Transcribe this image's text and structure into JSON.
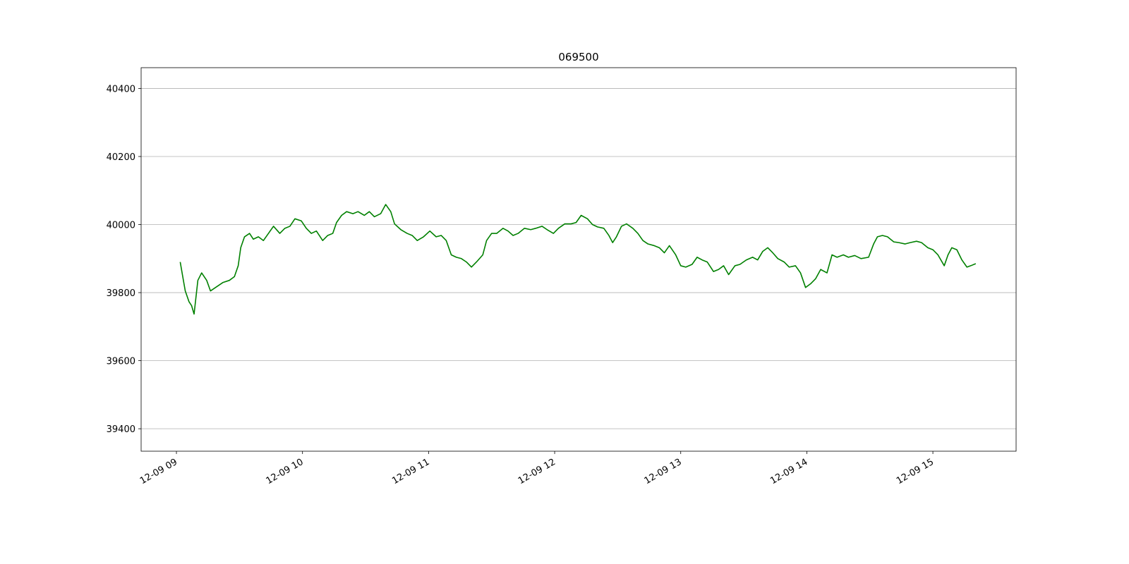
{
  "chart_data": {
    "type": "line",
    "title": "069500",
    "color": "#008000",
    "grid": "y",
    "x": [
      9.03,
      9.06,
      9.07,
      9.1,
      9.12,
      9.14,
      9.17,
      9.2,
      9.24,
      9.27,
      9.31,
      9.37,
      9.42,
      9.46,
      9.49,
      9.51,
      9.54,
      9.58,
      9.61,
      9.65,
      9.69,
      9.73,
      9.77,
      9.82,
      9.86,
      9.9,
      9.94,
      9.99,
      10.03,
      10.07,
      10.11,
      10.16,
      10.2,
      10.24,
      10.27,
      10.31,
      10.35,
      10.4,
      10.44,
      10.49,
      10.53,
      10.57,
      10.62,
      10.66,
      10.7,
      10.73,
      10.78,
      10.83,
      10.87,
      10.91,
      10.96,
      11.01,
      11.06,
      11.1,
      11.14,
      11.18,
      11.22,
      11.26,
      11.3,
      11.34,
      11.38,
      11.43,
      11.46,
      11.5,
      11.54,
      11.59,
      11.63,
      11.67,
      11.71,
      11.76,
      11.81,
      11.85,
      11.9,
      11.94,
      11.99,
      12.03,
      12.08,
      12.13,
      12.17,
      12.21,
      12.26,
      12.3,
      12.34,
      12.39,
      12.43,
      12.46,
      12.49,
      12.53,
      12.57,
      12.62,
      12.66,
      12.7,
      12.74,
      12.79,
      12.83,
      12.87,
      12.91,
      12.96,
      13.0,
      13.04,
      13.09,
      13.13,
      13.17,
      13.21,
      13.26,
      13.3,
      13.34,
      13.38,
      13.43,
      13.47,
      13.52,
      13.57,
      13.61,
      13.65,
      13.69,
      13.73,
      13.77,
      13.82,
      13.86,
      13.91,
      13.95,
      13.99,
      14.03,
      14.07,
      14.11,
      14.16,
      14.2,
      14.24,
      14.29,
      14.33,
      14.38,
      14.43,
      14.49,
      14.53,
      14.56,
      14.6,
      14.64,
      14.69,
      14.73,
      14.78,
      14.82,
      14.87,
      14.91,
      14.96,
      15.0,
      15.04,
      15.09,
      15.12,
      15.15,
      15.19,
      15.23,
      15.27,
      15.3,
      15.34
    ],
    "values": [
      39890,
      39826,
      39805,
      39773,
      39762,
      39737,
      39836,
      39858,
      39836,
      39805,
      39815,
      39830,
      39836,
      39847,
      39879,
      39932,
      39964,
      39974,
      39957,
      39964,
      39953,
      39974,
      39995,
      39974,
      39989,
      39995,
      40017,
      40011,
      39989,
      39974,
      39981,
      39953,
      39968,
      39974,
      40006,
      40027,
      40038,
      40032,
      40038,
      40027,
      40038,
      40023,
      40032,
      40059,
      40038,
      40002,
      39985,
      39974,
      39968,
      39953,
      39964,
      39981,
      39964,
      39968,
      39953,
      39911,
      39904,
      39900,
      39890,
      39875,
      39890,
      39911,
      39953,
      39974,
      39974,
      39989,
      39981,
      39968,
      39974,
      39989,
      39985,
      39989,
      39995,
      39985,
      39974,
      39989,
      40002,
      40002,
      40006,
      40027,
      40017,
      40000,
      39993,
      39989,
      39968,
      39947,
      39964,
      39995,
      40002,
      39989,
      39974,
      39953,
      39943,
      39938,
      39932,
      39917,
      39938,
      39911,
      39879,
      39875,
      39883,
      39904,
      39896,
      39890,
      39862,
      39868,
      39879,
      39853,
      39879,
      39883,
      39896,
      39904,
      39896,
      39921,
      39932,
      39917,
      39900,
      39890,
      39875,
      39879,
      39858,
      39815,
      39826,
      39841,
      39868,
      39858,
      39911,
      39904,
      39911,
      39904,
      39909,
      39900,
      39904,
      39943,
      39964,
      39968,
      39964,
      39949,
      39947,
      39943,
      39947,
      39951,
      39947,
      39932,
      39926,
      39911,
      39879,
      39911,
      39932,
      39926,
      39896,
      39875,
      39879,
      39885
    ],
    "xlim": [
      8.72,
      15.66
    ],
    "xticks": [
      {
        "value": 9,
        "label": "12-09 09"
      },
      {
        "value": 10,
        "label": "12-09 10"
      },
      {
        "value": 11,
        "label": "12-09 11"
      },
      {
        "value": 12,
        "label": "12-09 12"
      },
      {
        "value": 13,
        "label": "12-09 13"
      },
      {
        "value": 14,
        "label": "12-09 14"
      },
      {
        "value": 15,
        "label": "12-09 15"
      }
    ],
    "ylim": [
      39334,
      40461
    ],
    "yticks": [
      39400,
      39600,
      39800,
      40000,
      40200,
      40400
    ]
  }
}
